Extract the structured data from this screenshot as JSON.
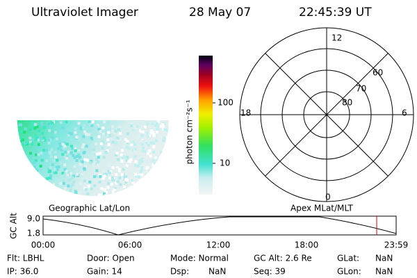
{
  "header": {
    "instrument": "Ultraviolet Imager",
    "date": "28 May 07",
    "time": "22:45:39 UT"
  },
  "colorbar": {
    "label": "photon cm⁻²s⁻¹",
    "ticks": [
      "100",
      "10"
    ]
  },
  "polar": {
    "mlt_labels": [
      "12",
      "18",
      "6",
      "0"
    ],
    "mlat_labels": [
      "60",
      "70",
      "80"
    ]
  },
  "altitude_plot": {
    "left_title": "Geographic Lat/Lon",
    "right_title": "Apex MLat/MLT",
    "y_label": "GC Alt",
    "y_ticks": [
      "9.0",
      "1.8"
    ],
    "x_ticks": [
      "00:00",
      "06:00",
      "12:00",
      "18:00",
      "23:59"
    ]
  },
  "status": {
    "rows": [
      [
        "Flt: LBHL",
        "Door: Open",
        "Mode: Normal",
        "GC Alt: 2.6 Re",
        "GLat:",
        "NaN"
      ],
      [
        "IP: 36.0",
        "Gain: 14",
        "Dsp:",
        "NaN",
        "Seq: 39",
        "GLon:",
        "NaN"
      ]
    ]
  }
}
